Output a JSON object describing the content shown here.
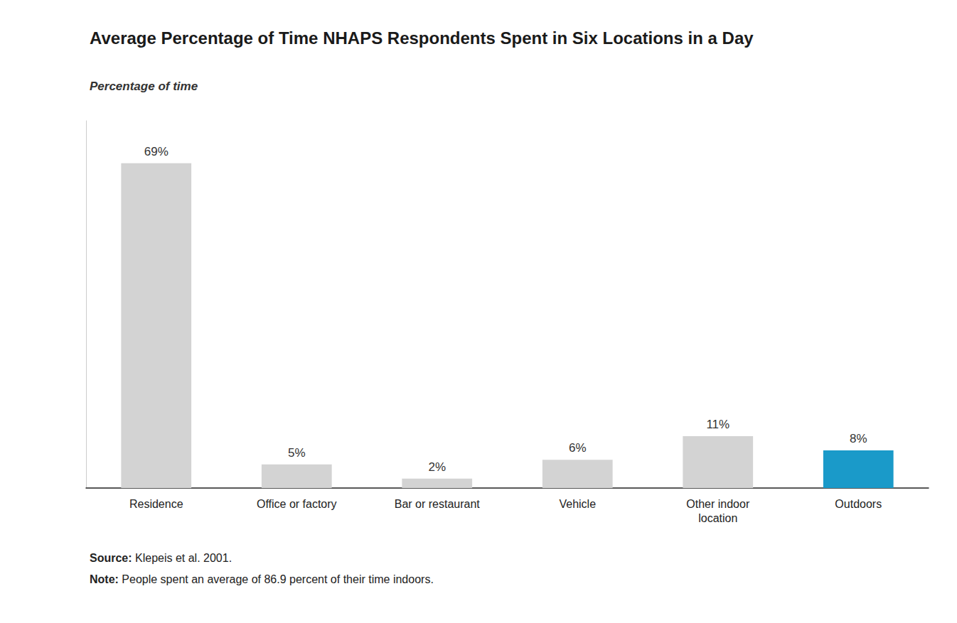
{
  "chart_data": {
    "type": "bar",
    "title": "Average Percentage of Time NHAPS Respondents Spent in Six Locations in a Day",
    "ylabel": "Percentage of time",
    "categories": [
      "Residence",
      "Office or factory",
      "Bar or restaurant",
      "Vehicle",
      "Other indoor\nlocation",
      "Outdoors"
    ],
    "values": [
      69,
      5,
      2,
      6,
      11,
      8
    ],
    "value_labels": [
      "69%",
      "5%",
      "2%",
      "6%",
      "11%",
      "8%"
    ],
    "data_labels": true,
    "colors": [
      "#d3d3d3",
      "#d3d3d3",
      "#d3d3d3",
      "#d3d3d3",
      "#d3d3d3",
      "#1a9ac9"
    ],
    "ylim": [
      0,
      78
    ],
    "grid": false,
    "tick_labels": "x",
    "annotations": [
      "Source: Klepeis et al. 2001.",
      "Note: People spent an average of 86.9 percent of their time indoors."
    ]
  }
}
